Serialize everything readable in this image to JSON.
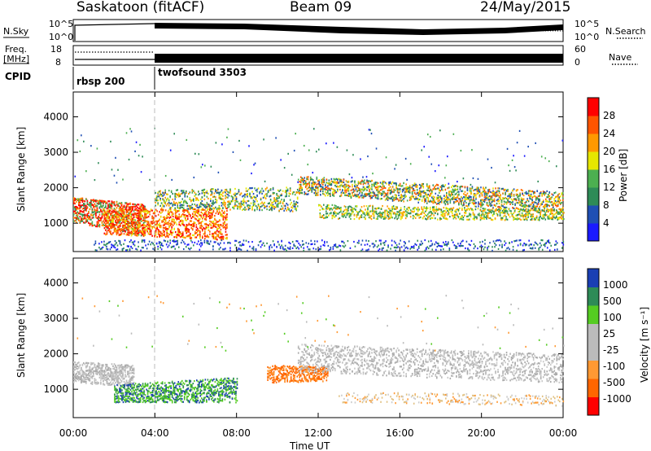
{
  "header": {
    "station": "Saskatoon (fitACF)",
    "beam": "Beam 09",
    "date": "24/May/2015"
  },
  "panels": {
    "nsky_label": "N.Sky",
    "nsky_ticks": [
      "10^5",
      "10^0"
    ],
    "nsearch_label": "N.Search",
    "nsearch_ticks": [
      "10^5",
      "10^0"
    ],
    "freq_label_1": "Freq.",
    "freq_label_2": "[MHz]",
    "freq_ticks": [
      "18",
      "8"
    ],
    "nave_label": "Nave",
    "nave_ticks": [
      "60",
      "0"
    ],
    "cpid_label": "CPID",
    "cpid_1": "rbsp 200",
    "cpid_2": "twofsound 3503"
  },
  "colors": {
    "power_scale": [
      "#1a1aff",
      "#1f4fb4",
      "#2e8b57",
      "#4caf50",
      "#e6e600",
      "#ff9900",
      "#ff5500",
      "#ff0000"
    ],
    "velocity_scale": [
      "#ff0000",
      "#ff6600",
      "#ff9933",
      "#bbbbbb",
      "#bbbbbb",
      "#55cc22",
      "#2e8b57",
      "#1a3fb4"
    ]
  },
  "chart_data": [
    {
      "type": "heatmap",
      "ylabel": "Slant Range [km]",
      "y_ticks": [
        "4000",
        "3000",
        "2000",
        "1000"
      ],
      "ylim": [
        200,
        4700
      ],
      "x_ticks": [
        "00:00",
        "04:00",
        "08:00",
        "12:00",
        "16:00",
        "20:00",
        "00:00"
      ],
      "colorbar_label": "Power [dB]",
      "colorbar_ticks": [
        "28",
        "24",
        "20",
        "16",
        "12",
        "8",
        "4"
      ]
    },
    {
      "type": "heatmap",
      "ylabel": "Slant Range [km]",
      "y_ticks": [
        "4000",
        "3000",
        "2000",
        "1000"
      ],
      "ylim": [
        200,
        4700
      ],
      "x_ticks": [
        "00:00",
        "04:00",
        "08:00",
        "12:00",
        "16:00",
        "20:00",
        "00:00"
      ],
      "xlabel": "Time UT",
      "colorbar_label": "Velocity [m s⁻¹]",
      "colorbar_ticks": [
        "1000",
        "500",
        "100",
        "25",
        "-25",
        "-100",
        "-500",
        "-1000"
      ]
    }
  ]
}
